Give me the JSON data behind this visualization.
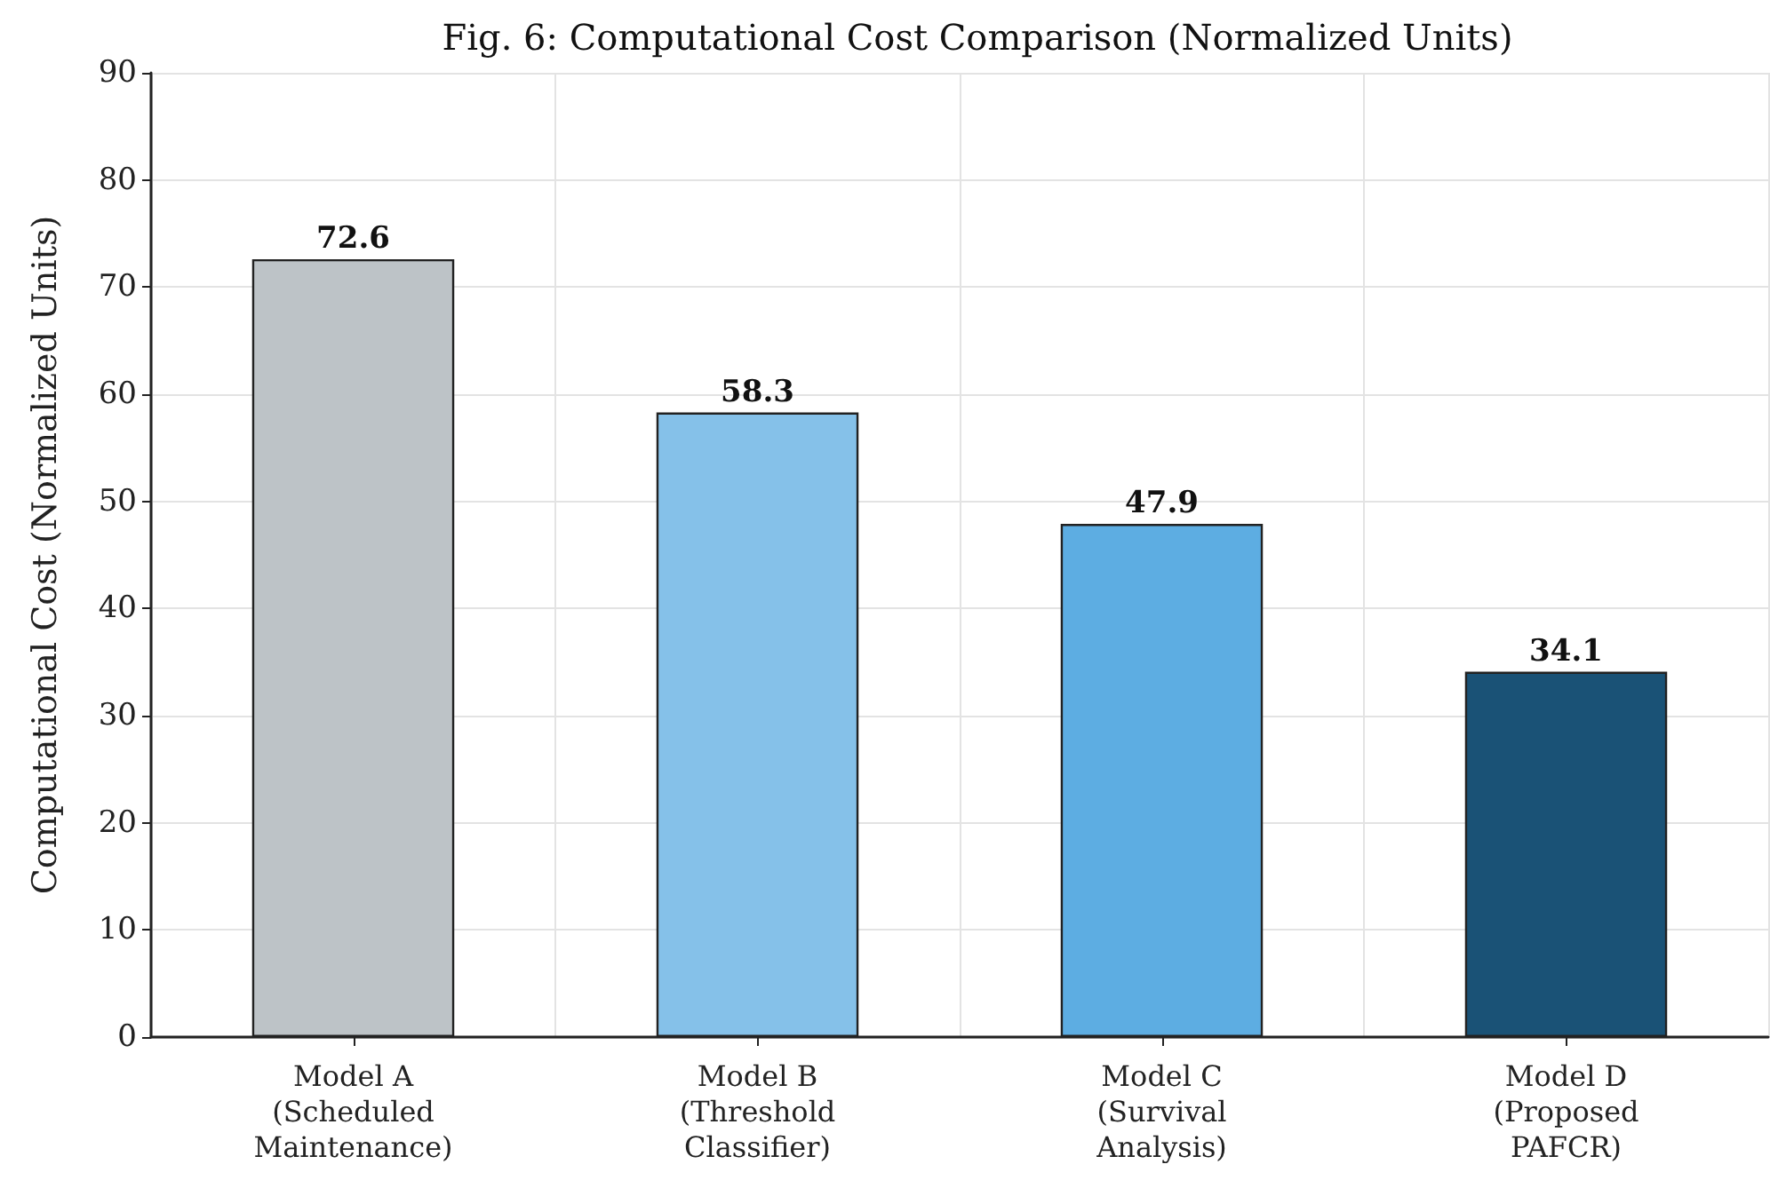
{
  "chart_data": {
    "type": "bar",
    "title": "Fig. 6: Computational Cost Comparison (Normalized Units)",
    "ylabel": "Computational Cost (Normalized Units)",
    "categories": [
      "Model A\n(Scheduled\nMaintenance)",
      "Model B\n(Threshold\nClassifier)",
      "Model C\n(Survival\nAnalysis)",
      "Model D\n(Proposed\nPAFCR)"
    ],
    "values": [
      72.6,
      58.3,
      47.9,
      34.1
    ],
    "colors": [
      "#bdc3c7",
      "#85c1e9",
      "#5dade2",
      "#1a5276"
    ],
    "ylim": [
      0,
      90
    ],
    "yticks": [
      0,
      10,
      20,
      30,
      40,
      50,
      60,
      70,
      80,
      90
    ],
    "grid": true,
    "data_labels": true
  }
}
